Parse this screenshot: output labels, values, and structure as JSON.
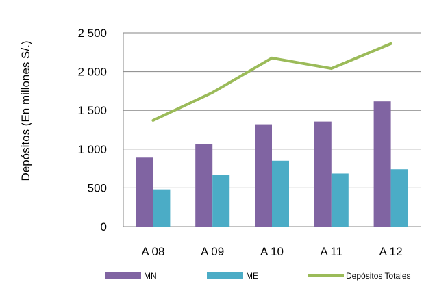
{
  "chart_data": {
    "type": "bar",
    "categories": [
      "A 08",
      "A 09",
      "A 10",
      "A 11",
      "A 12"
    ],
    "series": [
      {
        "name": "MN",
        "type": "bar",
        "color": "#8064A2",
        "values": [
          890,
          1060,
          1320,
          1355,
          1615
        ]
      },
      {
        "name": "ME",
        "type": "bar",
        "color": "#4BACC6",
        "values": [
          480,
          670,
          850,
          685,
          740
        ]
      },
      {
        "name": "Depósitos Totales",
        "type": "line",
        "color": "#9BBB59",
        "values": [
          1370,
          1730,
          2175,
          2040,
          2360
        ]
      }
    ],
    "title": "",
    "xlabel": "",
    "ylabel": "Depósitos (En millones  S/.)",
    "ylim": [
      0,
      2500
    ],
    "yticks": [
      0,
      500,
      1000,
      1500,
      2000,
      2500
    ],
    "ytick_labels": [
      "0",
      "500",
      "1 000",
      "1 500",
      "2 000",
      "2 500"
    ],
    "grid": "horizontal",
    "legend_position": "bottom"
  }
}
